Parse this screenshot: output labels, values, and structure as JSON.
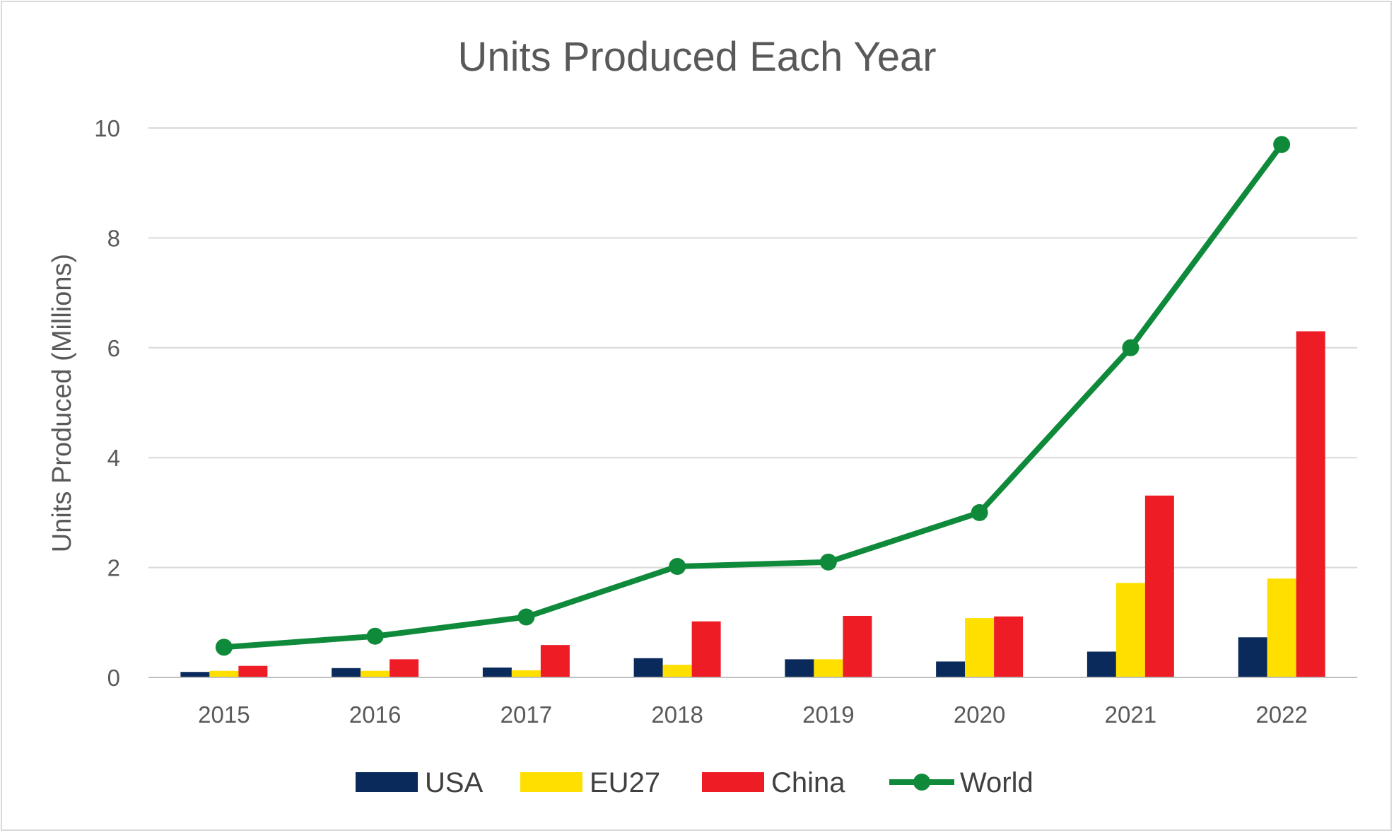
{
  "chart_data": {
    "type": "bar",
    "title": "Units Produced Each Year",
    "xlabel": "",
    "ylabel": "Units Produced (Millions)",
    "ylim": [
      0,
      10
    ],
    "yticks": [
      "0",
      "2",
      "4",
      "6",
      "8",
      "10"
    ],
    "grid": true,
    "legend_position": "bottom",
    "categories": [
      "2015",
      "2016",
      "2017",
      "2018",
      "2019",
      "2020",
      "2021",
      "2022"
    ],
    "series": [
      {
        "name": "USA",
        "kind": "bar",
        "color": "#0b2a5c",
        "values": [
          0.1,
          0.17,
          0.18,
          0.35,
          0.33,
          0.29,
          0.47,
          0.73
        ]
      },
      {
        "name": "EU27",
        "kind": "bar",
        "color": "#ffdf00",
        "values": [
          0.12,
          0.12,
          0.13,
          0.23,
          0.33,
          1.08,
          1.72,
          1.8
        ]
      },
      {
        "name": "China",
        "kind": "bar",
        "color": "#ee1c25",
        "values": [
          0.21,
          0.33,
          0.59,
          1.02,
          1.12,
          1.11,
          3.31,
          6.3
        ]
      },
      {
        "name": "World",
        "kind": "line",
        "color": "#0f8a3b",
        "values": [
          0.55,
          0.75,
          1.1,
          2.02,
          2.1,
          3.0,
          6.0,
          9.7
        ]
      }
    ]
  }
}
